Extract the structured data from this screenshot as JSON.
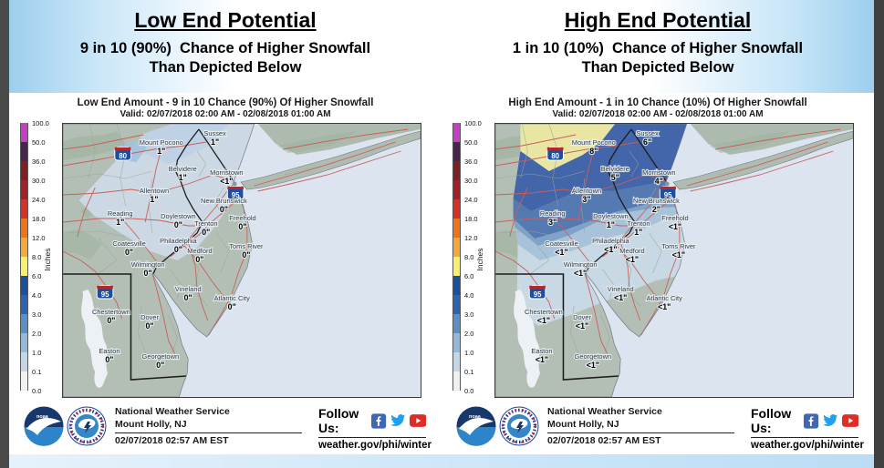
{
  "colorbar": {
    "unit": "Inches",
    "ticks": [
      "100.0",
      "50.0",
      "36.0",
      "30.0",
      "24.0",
      "18.0",
      "12.0",
      "8.0",
      "6.0",
      "4.0",
      "3.0",
      "2.0",
      "1.0",
      "0.1",
      "0.0"
    ],
    "segment_colors": [
      "#c43fc4",
      "#46254e",
      "#7d2026",
      "#a32026",
      "#d92f27",
      "#ee7419",
      "#f4a93c",
      "#f7ef71",
      "#1d4fa1",
      "#2f63ad",
      "#5c8fc4",
      "#92b9da",
      "#c3d7e8",
      "#f0f0ee"
    ]
  },
  "interstate_shields": [
    {
      "label": "80"
    },
    {
      "label": "95"
    },
    {
      "label": "95"
    }
  ],
  "panels": [
    {
      "header": {
        "title": "Low End Potential",
        "subtitle_line1": "9 in 10 (90%)  Chance of Higher Snowfall",
        "subtitle_line2": "Than Depicted Below"
      },
      "map": {
        "title": "Low End Amount - 9 in 10 Chance (90%) Of Higher Snowfall",
        "valid": "Valid: 02/07/2018 02:00 AM - 02/08/2018 01:00 AM",
        "cities": [
          {
            "name": "Mount Pocono",
            "amount": "1\""
          },
          {
            "name": "Sussex",
            "amount": "1\""
          },
          {
            "name": "Belvidere",
            "amount": "1\""
          },
          {
            "name": "Morristown",
            "amount": "<1\""
          },
          {
            "name": "Allentown",
            "amount": "1\""
          },
          {
            "name": "New Brunswick",
            "amount": "0\""
          },
          {
            "name": "Reading",
            "amount": "1\""
          },
          {
            "name": "Doylestown",
            "amount": "0\""
          },
          {
            "name": "Trenton",
            "amount": "0\""
          },
          {
            "name": "Freehold",
            "amount": "0\""
          },
          {
            "name": "Philadelphia",
            "amount": "0\""
          },
          {
            "name": "Coatesville",
            "amount": "0\""
          },
          {
            "name": "Medford",
            "amount": "0\""
          },
          {
            "name": "Toms River",
            "amount": "0\""
          },
          {
            "name": "Wilmington",
            "amount": "0\""
          },
          {
            "name": "Vineland",
            "amount": "0\""
          },
          {
            "name": "Atlantic City",
            "amount": "0\""
          },
          {
            "name": "Chestertown",
            "amount": "0\""
          },
          {
            "name": "Dover",
            "amount": "0\""
          },
          {
            "name": "Easton",
            "amount": "0\""
          },
          {
            "name": "Georgetown",
            "amount": "0\""
          }
        ]
      }
    },
    {
      "header": {
        "title": "High End Potential",
        "subtitle_line1": "1 in 10 (10%)  Chance of Higher Snowfall",
        "subtitle_line2": "Than Depicted Below"
      },
      "map": {
        "title": "High End Amount - 1 in 10 Chance (10%) Of Higher Snowfall",
        "valid": "Valid: 02/07/2018 02:00 AM - 02/08/2018 01:00 AM",
        "cities": [
          {
            "name": "Mount Pocono",
            "amount": "8\""
          },
          {
            "name": "Sussex",
            "amount": "6\""
          },
          {
            "name": "Belvidere",
            "amount": "5\""
          },
          {
            "name": "Morristown",
            "amount": "4\""
          },
          {
            "name": "Allentown",
            "amount": "3\""
          },
          {
            "name": "New Brunswick",
            "amount": "2\""
          },
          {
            "name": "Reading",
            "amount": "3\""
          },
          {
            "name": "Doylestown",
            "amount": "1\""
          },
          {
            "name": "Trenton",
            "amount": "1\""
          },
          {
            "name": "Freehold",
            "amount": "<1\""
          },
          {
            "name": "Philadelphia",
            "amount": "<1\""
          },
          {
            "name": "Coatesville",
            "amount": "<1\""
          },
          {
            "name": "Medford",
            "amount": "<1\""
          },
          {
            "name": "Toms River",
            "amount": "<1\""
          },
          {
            "name": "Wilmington",
            "amount": "<1\""
          },
          {
            "name": "Vineland",
            "amount": "<1\""
          },
          {
            "name": "Atlantic City",
            "amount": "<1\""
          },
          {
            "name": "Chestertown",
            "amount": "<1\""
          },
          {
            "name": "Dover",
            "amount": "<1\""
          },
          {
            "name": "Easton",
            "amount": "<1\""
          },
          {
            "name": "Georgetown",
            "amount": "<1\""
          }
        ]
      }
    }
  ],
  "footer": {
    "org_line1": "National Weather Service",
    "org_line2": "Mount Holly, NJ",
    "timestamp": "02/07/2018 02:57 AM EST",
    "follow_label": "Follow Us:",
    "url": "weather.gov/phi/winter",
    "noaa_text": "noaa",
    "social": [
      "facebook",
      "twitter",
      "youtube"
    ]
  }
}
